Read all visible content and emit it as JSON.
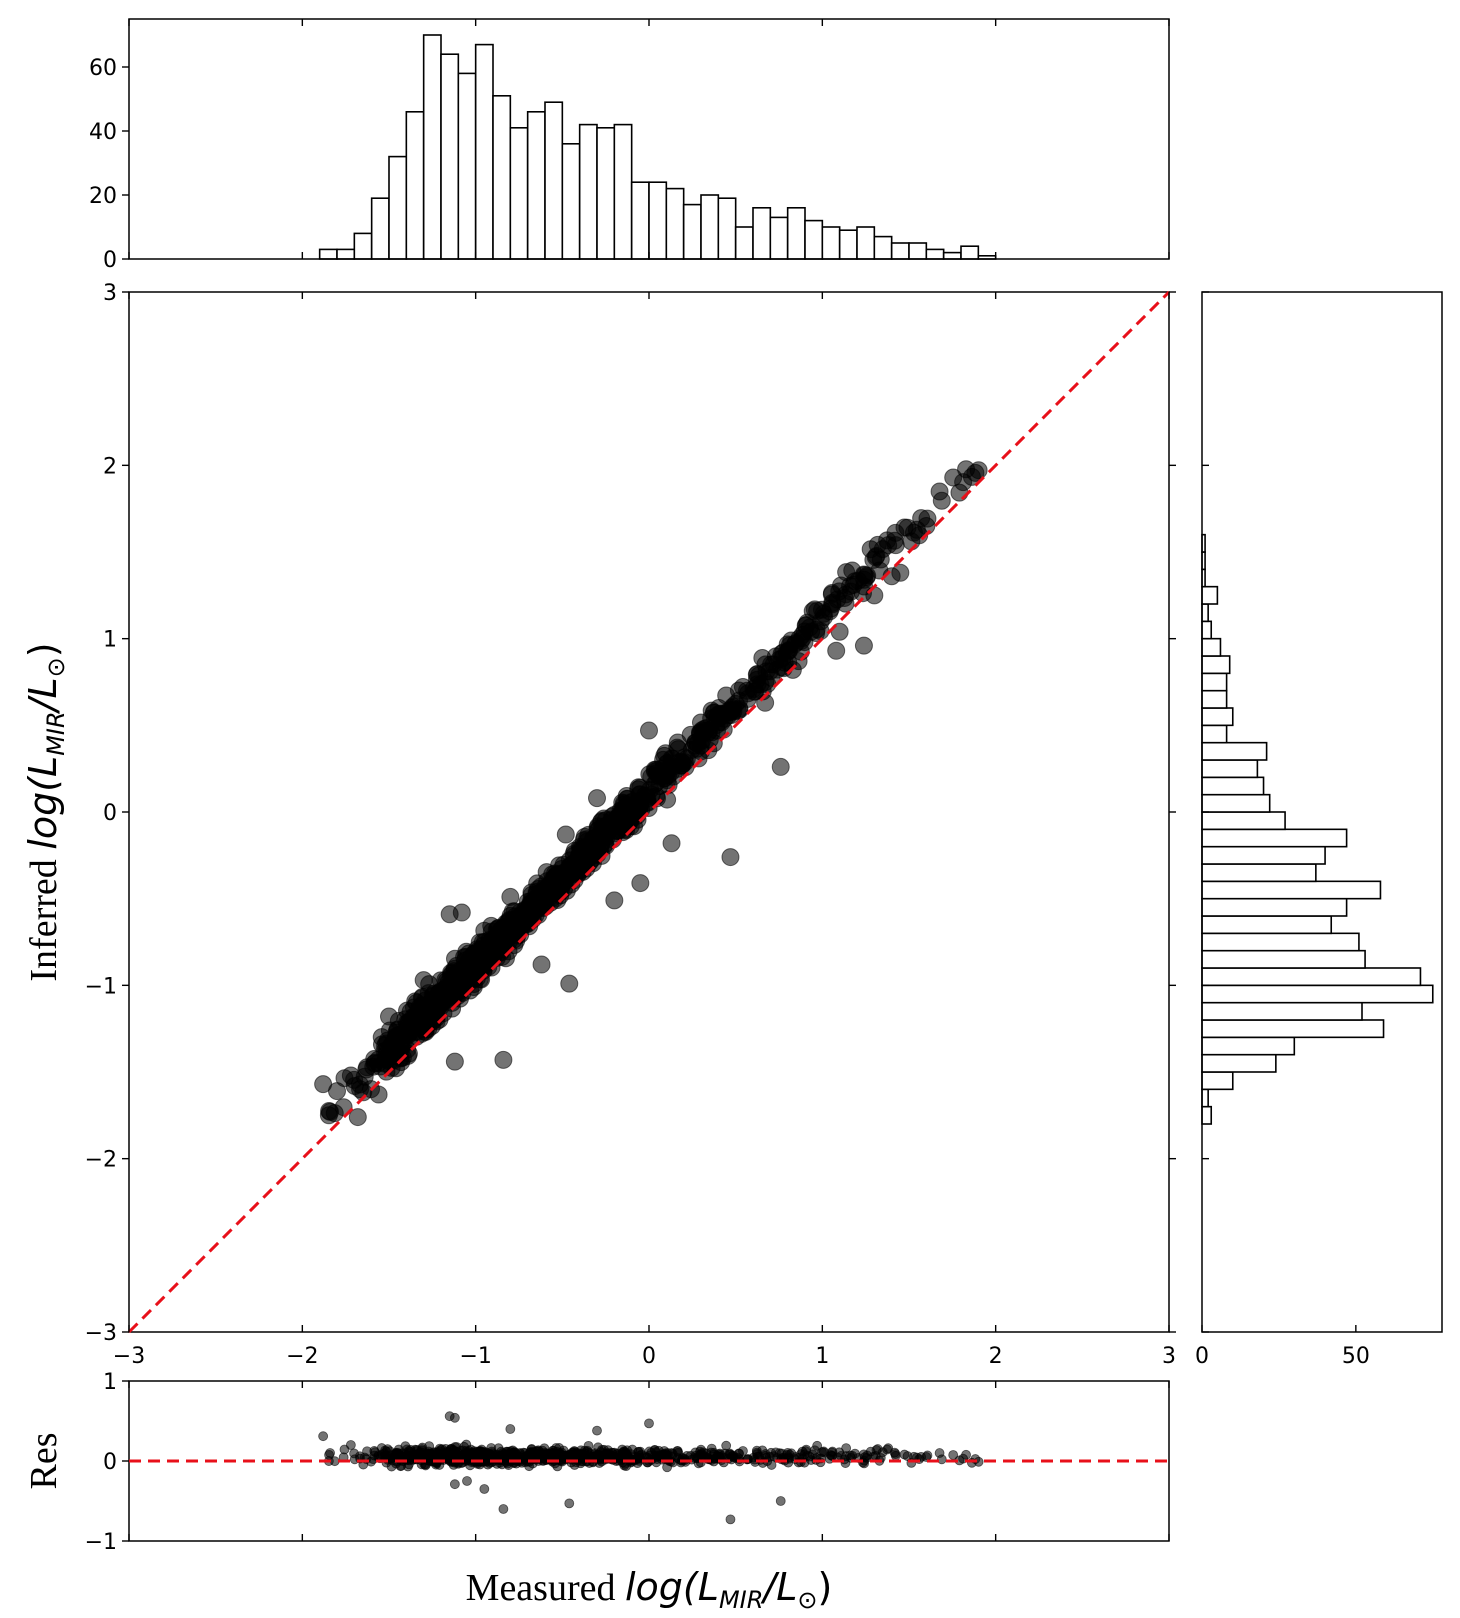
{
  "chart_data": [
    {
      "id": "main_scatter",
      "type": "scatter",
      "xlabel": "",
      "ylabel_prefix": "Inferred",
      "ylabel_math": "log(L",
      "ylabel_sub": "MIR",
      "ylabel_mid": "/L",
      "ylabel_sun": "⊙",
      "ylabel_end": ")",
      "xlim": [
        -3,
        3
      ],
      "ylim": [
        -3,
        3
      ],
      "xticks": [
        -3,
        -2,
        -1,
        0,
        1,
        2,
        3
      ],
      "yticks": [
        -3,
        -2,
        -1,
        0,
        1,
        2,
        3
      ],
      "xtick_labels": [
        "−3",
        "−2",
        "−1",
        "0",
        "1",
        "2",
        "3"
      ],
      "ytick_labels": [
        "−3",
        "−2",
        "−1",
        "0",
        "1",
        "2",
        "3"
      ],
      "reference_line": {
        "from": [
          -3,
          -3
        ],
        "to": [
          3,
          3
        ],
        "color": "#e8101a",
        "style": "dashed"
      },
      "point_color": "#000000",
      "point_opacity": 0.55,
      "outliers": [
        {
          "x": -1.88,
          "y": -1.57
        },
        {
          "x": -1.84,
          "y": -1.73
        },
        {
          "x": -1.8,
          "y": -1.61
        },
        {
          "x": -1.72,
          "y": -1.52
        },
        {
          "x": -1.68,
          "y": -1.76
        },
        {
          "x": -1.56,
          "y": -1.63
        },
        {
          "x": -1.5,
          "y": -1.18
        },
        {
          "x": -1.3,
          "y": -0.97
        },
        {
          "x": -1.15,
          "y": -0.59
        },
        {
          "x": -1.08,
          "y": -0.58
        },
        {
          "x": -1.12,
          "y": -1.44
        },
        {
          "x": -0.84,
          "y": -1.43
        },
        {
          "x": -0.8,
          "y": -0.49
        },
        {
          "x": -0.62,
          "y": -0.88
        },
        {
          "x": -0.46,
          "y": -0.99
        },
        {
          "x": -0.48,
          "y": -0.13
        },
        {
          "x": -0.3,
          "y": 0.08
        },
        {
          "x": -0.2,
          "y": -0.51
        },
        {
          "x": -0.05,
          "y": -0.41
        },
        {
          "x": 0.0,
          "y": 0.47
        },
        {
          "x": 0.13,
          "y": -0.18
        },
        {
          "x": 0.3,
          "y": 0.35
        },
        {
          "x": 0.47,
          "y": -0.26
        },
        {
          "x": 0.48,
          "y": 0.6
        },
        {
          "x": 0.67,
          "y": 0.63
        },
        {
          "x": 0.76,
          "y": 0.26
        },
        {
          "x": 0.83,
          "y": 0.82
        },
        {
          "x": 0.97,
          "y": 1.16
        },
        {
          "x": 1.08,
          "y": 0.93
        },
        {
          "x": 1.1,
          "y": 1.04
        },
        {
          "x": 1.18,
          "y": 1.31
        },
        {
          "x": 1.24,
          "y": 0.96
        },
        {
          "x": 1.3,
          "y": 1.25
        },
        {
          "x": 1.38,
          "y": 1.54
        },
        {
          "x": 1.4,
          "y": 1.36
        },
        {
          "x": 1.45,
          "y": 1.38
        },
        {
          "x": 1.6,
          "y": 1.65
        }
      ]
    },
    {
      "id": "top_histogram",
      "type": "bar",
      "xlim": [
        -3,
        3
      ],
      "ylim": [
        0,
        75
      ],
      "yticks": [
        0,
        20,
        40,
        60
      ],
      "ytick_labels": [
        "0",
        "20",
        "40",
        "60"
      ],
      "bin_width": 0.1,
      "bin_start": -1.9,
      "values": [
        3,
        3,
        8,
        19,
        32,
        46,
        70,
        64,
        58,
        67,
        51,
        41,
        46,
        49,
        36,
        42,
        41,
        42,
        24,
        24,
        22,
        17,
        20,
        19,
        10,
        16,
        13,
        16,
        12,
        10,
        9,
        10,
        7,
        5,
        5,
        3,
        2,
        4,
        1
      ]
    },
    {
      "id": "right_histogram",
      "type": "bar",
      "orientation": "horizontal",
      "ylim": [
        -3,
        3
      ],
      "xlim": [
        0,
        78
      ],
      "xticks": [
        0,
        50
      ],
      "xtick_labels": [
        "0",
        "50"
      ],
      "bin_height": 0.1,
      "bin_start": -1.8,
      "values": [
        3,
        2,
        10,
        24,
        30,
        59,
        52,
        75,
        71,
        53,
        51,
        42,
        47,
        58,
        37,
        40,
        47,
        27,
        22,
        20,
        18,
        21,
        8,
        10,
        8,
        8,
        9,
        6,
        3,
        2,
        5,
        1,
        1,
        1
      ]
    },
    {
      "id": "residual_panel",
      "type": "scatter",
      "xlabel_prefix": "Measured",
      "xlabel_math": "log(L",
      "xlabel_sub": "MIR",
      "xlabel_mid": "/L",
      "xlabel_sun": "⊙",
      "xlabel_end": ")",
      "ylabel": "Res",
      "xlim": [
        -3,
        3
      ],
      "ylim": [
        -1,
        1
      ],
      "yticks": [
        -1,
        0,
        1
      ],
      "ytick_labels": [
        "−1",
        "0",
        "1"
      ],
      "reference_line": {
        "y": 0,
        "color": "#e8101a",
        "style": "dashed"
      },
      "outliers": [
        {
          "x": -1.88,
          "y": 0.31
        },
        {
          "x": -1.84,
          "y": 0.1
        },
        {
          "x": -1.72,
          "y": 0.2
        },
        {
          "x": -1.15,
          "y": 0.56
        },
        {
          "x": -1.12,
          "y": 0.54
        },
        {
          "x": -1.12,
          "y": -0.29
        },
        {
          "x": -1.05,
          "y": -0.25
        },
        {
          "x": -0.95,
          "y": -0.35
        },
        {
          "x": -0.84,
          "y": -0.6
        },
        {
          "x": -0.8,
          "y": 0.4
        },
        {
          "x": -0.46,
          "y": -0.53
        },
        {
          "x": -0.3,
          "y": 0.38
        },
        {
          "x": 0.0,
          "y": 0.47
        },
        {
          "x": 0.47,
          "y": -0.73
        },
        {
          "x": 0.76,
          "y": -0.5
        },
        {
          "x": 0.97,
          "y": 0.19
        },
        {
          "x": 1.38,
          "y": 0.16
        },
        {
          "x": 1.6,
          "y": 0.05
        }
      ]
    }
  ]
}
